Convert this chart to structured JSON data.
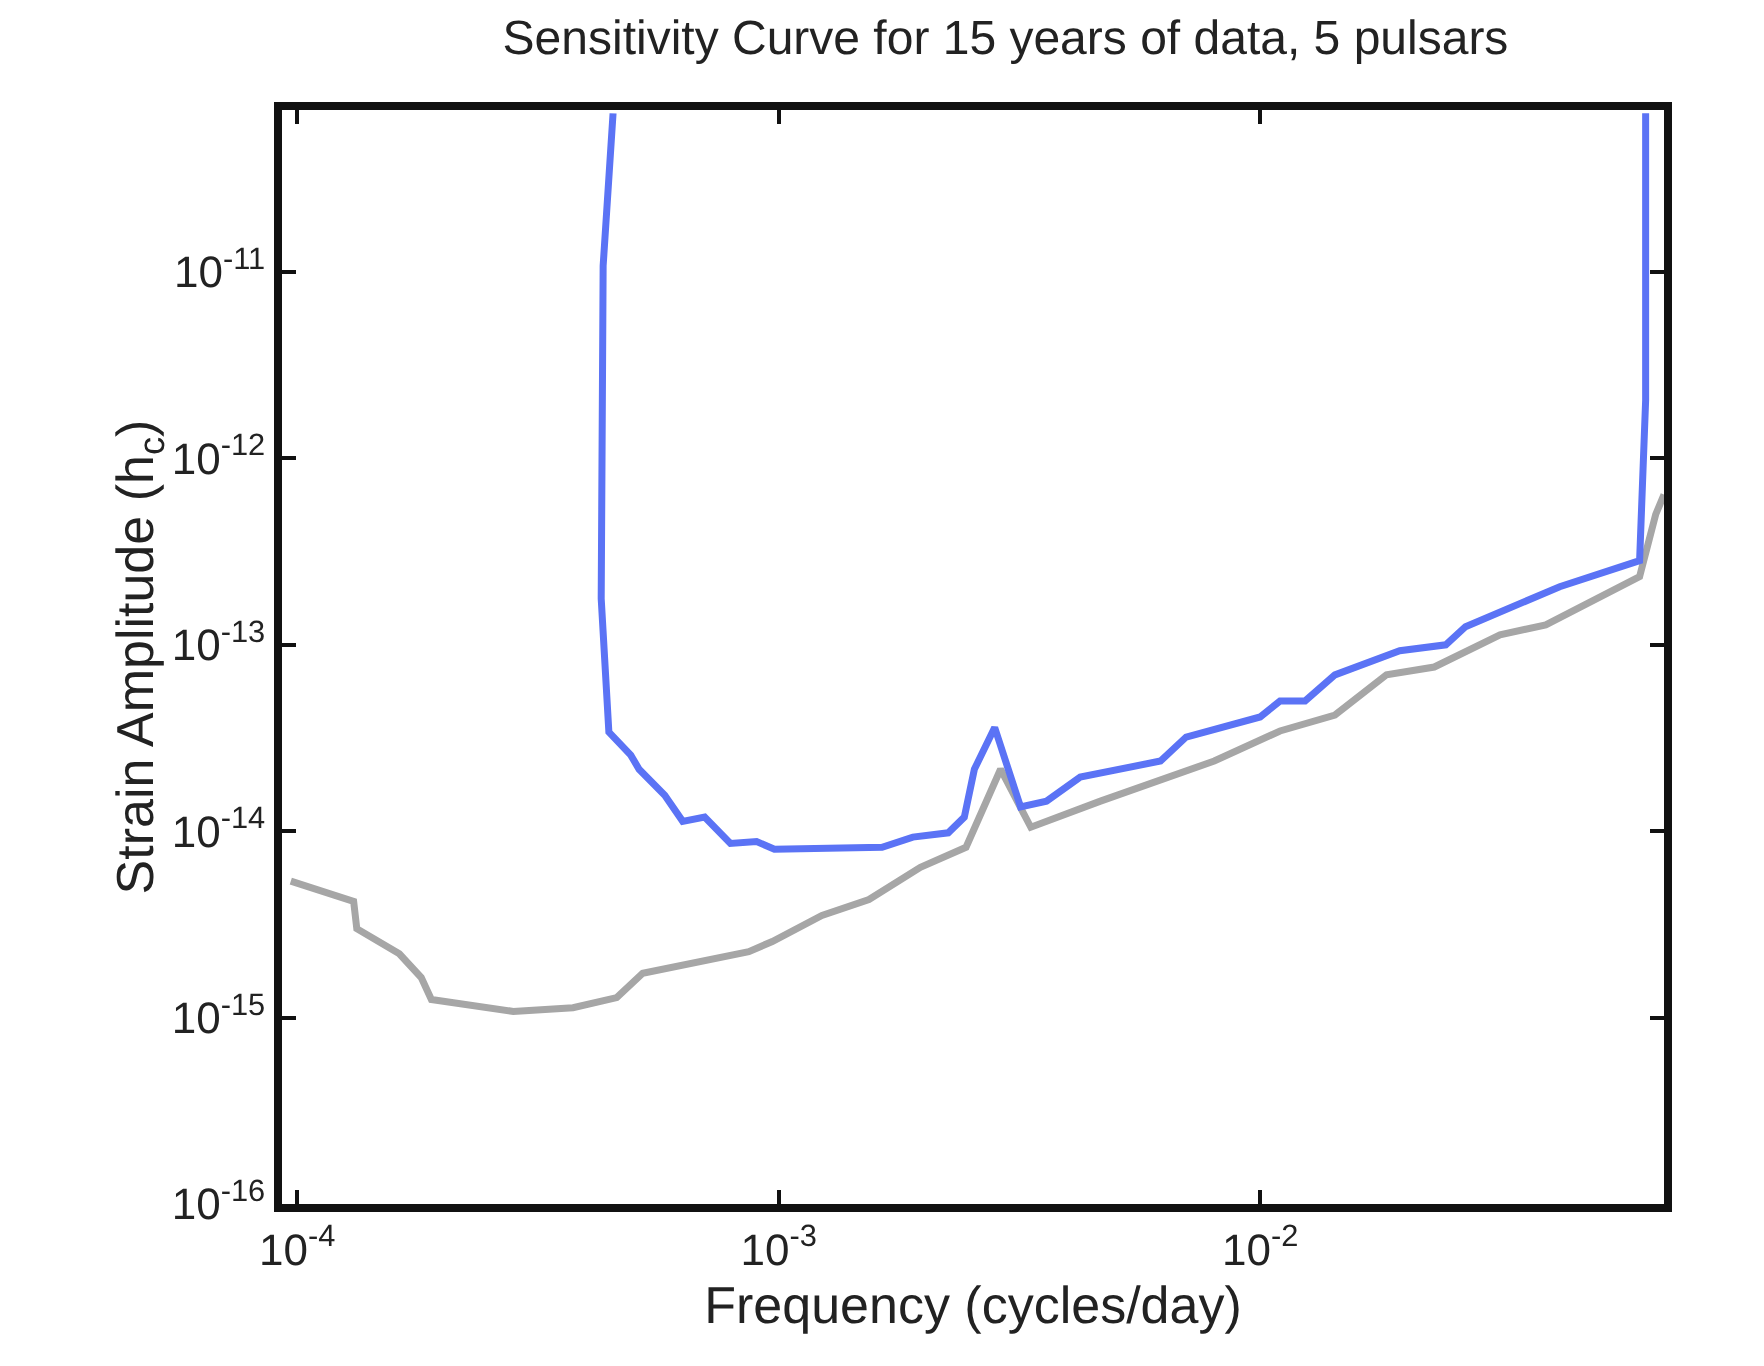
{
  "chart_data": {
    "type": "line",
    "title": "Sensitivity Curve for 15 years of data, 5 pulsars",
    "xlabel": "Frequency (cycles/day)",
    "ylabel": "Strain Amplitude (h$_{c}$)",
    "log": "xy",
    "line_style": "solid",
    "marker": "none",
    "xlim": [
      9.3e-05,
      0.069
    ],
    "ylim": [
      1e-16,
      7.4e-11
    ],
    "xticks": [
      {
        "value": 0.0001,
        "label": "10$^{-4}$"
      },
      {
        "value": 0.001,
        "label": "10$^{-3}$"
      },
      {
        "value": 0.01,
        "label": "10$^{-2}$"
      }
    ],
    "yticks": [
      {
        "value": 1e-16,
        "label": "10$^{-16}$"
      },
      {
        "value": 1e-15,
        "label": "10$^{-15}$"
      },
      {
        "value": 1e-14,
        "label": "10$^{-14}$"
      },
      {
        "value": 1e-13,
        "label": "10$^{-13}$"
      },
      {
        "value": 1e-12,
        "label": "10$^{-12}$"
      },
      {
        "value": 1e-11,
        "label": "10$^{-11}$"
      }
    ],
    "series": [
      {
        "color": "#a6a6a6",
        "x": [
          9.7e-05,
          0.000131,
          0.000133,
          0.000163,
          0.000181,
          0.00019,
          0.000281,
          0.000374,
          0.000461,
          0.000522,
          0.000867,
          0.00097,
          0.00123,
          0.00154,
          0.00197,
          0.00245,
          0.00289,
          0.00334,
          0.00466,
          0.00803,
          0.011,
          0.0143,
          0.0183,
          0.023,
          0.0315,
          0.0392,
          0.0614,
          0.0663,
          0.069
        ],
        "values": [
          5.4e-15,
          4.2e-15,
          3e-15,
          2.2e-15,
          1.64e-15,
          1.25e-15,
          1.08e-15,
          1.13e-15,
          1.28e-15,
          1.73e-15,
          2.26e-15,
          2.56e-15,
          3.53e-15,
          4.3e-15,
          6.4e-15,
          8.2e-15,
          2.15e-14,
          1.05e-14,
          1.45e-14,
          2.38e-14,
          3.45e-14,
          4.2e-14,
          6.9e-14,
          7.6e-14,
          1.13e-13,
          1.28e-13,
          2.32e-13,
          5e-13,
          6.4e-13
        ]
      },
      {
        "color": "#5b73f5",
        "x": [
          0.000453,
          0.000432,
          0.000428,
          0.000444,
          0.000493,
          0.000513,
          0.00058,
          0.000632,
          0.000702,
          0.000794,
          0.0009,
          0.00098,
          0.00164,
          0.0019,
          0.00225,
          0.00243,
          0.00255,
          0.00281,
          0.00318,
          0.0036,
          0.00423,
          0.00621,
          0.00702,
          0.01,
          0.011,
          0.0124,
          0.0143,
          0.0195,
          0.0243,
          0.0267,
          0.0419,
          0.0614,
          0.0632,
          0.0632
        ],
        "values": [
          7.1e-11,
          1.08e-11,
          1.77e-13,
          3.4e-14,
          2.56e-14,
          2.15e-14,
          1.56e-14,
          1.13e-14,
          1.19e-14,
          8.6e-15,
          8.8e-15,
          8e-15,
          8.2e-15,
          9.3e-15,
          9.8e-15,
          1.19e-14,
          2.15e-14,
          3.6e-14,
          1.35e-14,
          1.45e-14,
          1.95e-14,
          2.38e-14,
          3.2e-14,
          4.1e-14,
          5e-14,
          5e-14,
          6.9e-14,
          9.3e-14,
          1e-13,
          1.25e-13,
          2.05e-13,
          2.83e-13,
          2.05e-12,
          7.1e-11
        ]
      }
    ]
  }
}
